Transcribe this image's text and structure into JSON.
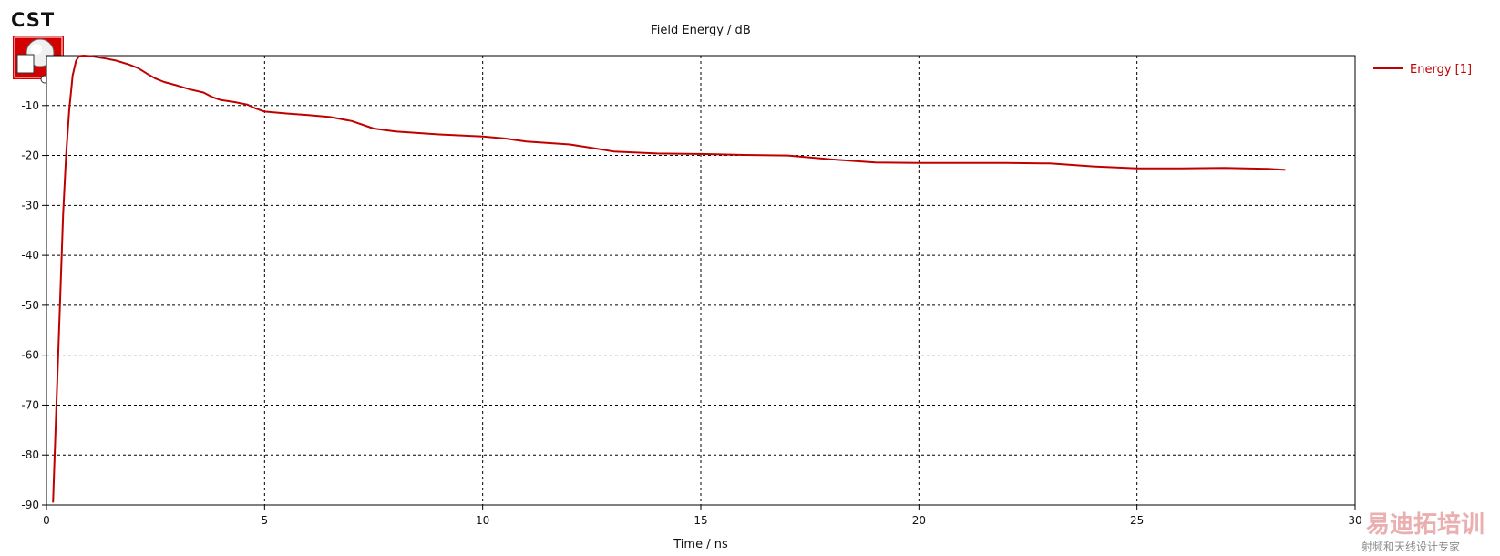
{
  "logo": {
    "text": "CST"
  },
  "watermark": {
    "title": "易迪拓培训",
    "subtitle": "射频和天线设计专家"
  },
  "chart_data": {
    "type": "line",
    "title": "Field Energy / dB",
    "xlabel": "Time / ns",
    "ylabel": "",
    "xlim": [
      0,
      30
    ],
    "ylim": [
      -90,
      0
    ],
    "xticks": [
      0,
      5,
      10,
      15,
      20,
      25,
      30
    ],
    "yticks": [
      -10,
      -20,
      -30,
      -40,
      -50,
      -60,
      -70,
      -80,
      -90
    ],
    "grid": true,
    "grid_style": "dashed",
    "legend": "top-right",
    "colors": {
      "series": "#c00000",
      "grid": "#000000",
      "axis": "#000000"
    },
    "series": [
      {
        "name": "Energy [1]",
        "x": [
          0.15,
          0.22,
          0.3,
          0.38,
          0.45,
          0.52,
          0.6,
          0.68,
          0.75,
          0.85,
          1.0,
          1.3,
          1.6,
          1.9,
          2.1,
          2.3,
          2.5,
          2.7,
          3.0,
          3.3,
          3.6,
          3.8,
          4.0,
          4.3,
          4.6,
          4.8,
          5.0,
          5.5,
          6.0,
          6.5,
          7.0,
          7.5,
          8.0,
          8.5,
          9.0,
          9.5,
          10.0,
          10.5,
          11.0,
          11.5,
          12.0,
          12.5,
          13.0,
          14.0,
          15.0,
          16.0,
          17.0,
          18.0,
          19.0,
          20.0,
          21.0,
          22.0,
          23.0,
          24.0,
          25.0,
          26.0,
          27.0,
          28.0,
          28.4
        ],
        "values": [
          -89.5,
          -72,
          -52,
          -32,
          -20,
          -11,
          -4,
          -1,
          -0.1,
          0,
          -0.1,
          -0.5,
          -1.0,
          -1.8,
          -2.5,
          -3.6,
          -4.6,
          -5.3,
          -6.0,
          -6.8,
          -7.4,
          -8.3,
          -8.9,
          -9.3,
          -9.8,
          -10.6,
          -11.2,
          -11.6,
          -11.9,
          -12.3,
          -13.1,
          -14.6,
          -15.2,
          -15.5,
          -15.8,
          -16.0,
          -16.2,
          -16.6,
          -17.2,
          -17.5,
          -17.8,
          -18.5,
          -19.2,
          -19.6,
          -19.7,
          -19.9,
          -20.0,
          -20.8,
          -21.4,
          -21.5,
          -21.5,
          -21.5,
          -21.6,
          -22.2,
          -22.6,
          -22.6,
          -22.5,
          -22.7,
          -22.9
        ]
      }
    ]
  }
}
